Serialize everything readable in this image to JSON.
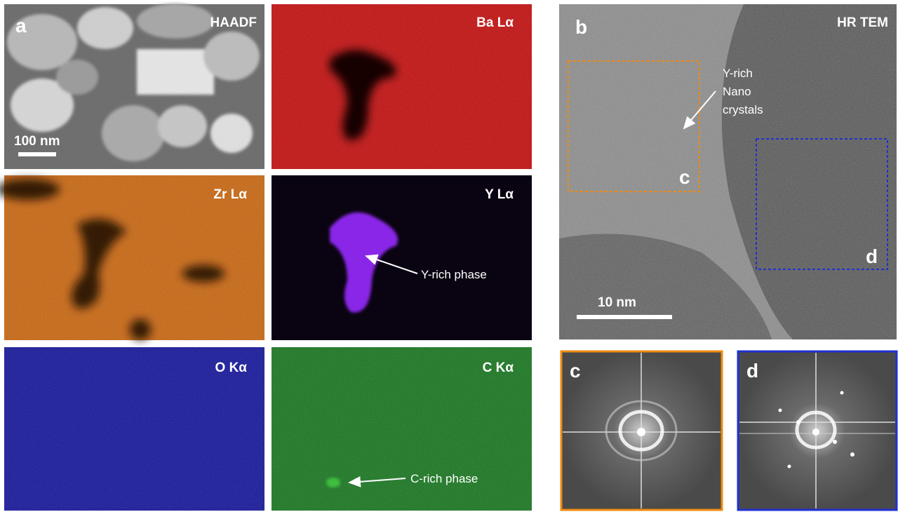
{
  "panel_a": {
    "label": "a",
    "maps": [
      {
        "title": "HAADF",
        "scale_bar": "100 nm"
      },
      {
        "title": "Ba Lα"
      },
      {
        "title": "Zr Lα"
      },
      {
        "title": "Y Lα",
        "annotation": "Y-rich phase"
      },
      {
        "title": "O Kα"
      },
      {
        "title": "C Kα",
        "annotation": "C-rich phase"
      }
    ]
  },
  "panel_b": {
    "label": "b",
    "title": "HR TEM",
    "annotation": [
      "Y-rich",
      "Nano",
      "crystals"
    ],
    "box_c": "c",
    "box_d": "d",
    "scale_bar": "10 nm"
  },
  "panel_c": {
    "label": "c"
  },
  "panel_d": {
    "label": "d"
  }
}
